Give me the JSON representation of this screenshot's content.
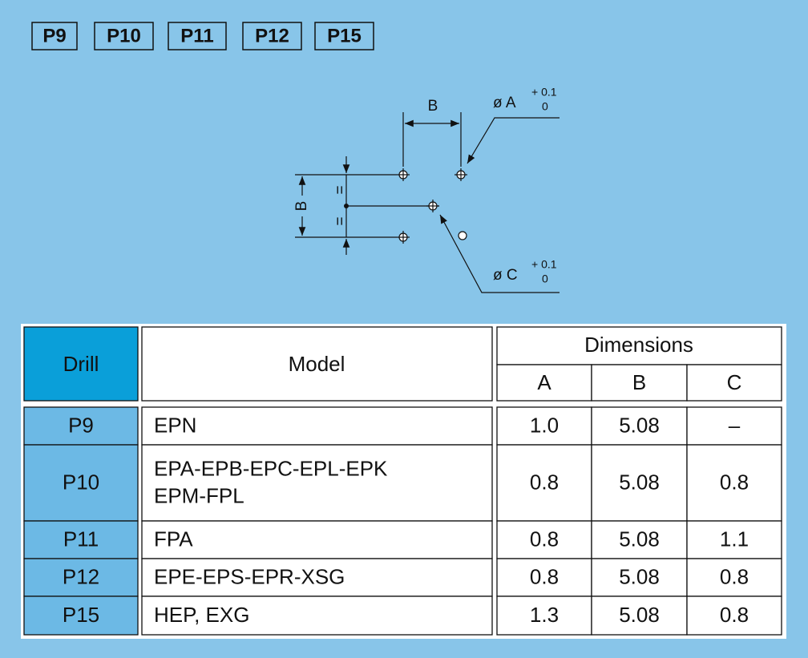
{
  "tabs": [
    "P9",
    "P10",
    "P11",
    "P12",
    "P15"
  ],
  "diagram": {
    "dim_b_top": "B",
    "dim_b_left": "B",
    "equal_top": "=",
    "equal_bottom": "=",
    "hole_a": {
      "label": "ø A",
      "tol_upper": "+ 0.1",
      "tol_lower": "0"
    },
    "hole_c": {
      "label": "ø C",
      "tol_upper": "+ 0.1",
      "tol_lower": "0"
    }
  },
  "table": {
    "headers": {
      "drill": "Drill",
      "model": "Model",
      "dimensions": "Dimensions",
      "a": "A",
      "b": "B",
      "c": "C"
    },
    "rows": [
      [
        "P9",
        [
          "EPN"
        ],
        "1.0",
        "5.08",
        "–"
      ],
      [
        "P10",
        [
          "EPA-EPB-EPC-EPL-EPK",
          "EPM-FPL"
        ],
        "0.8",
        "5.08",
        "0.8"
      ],
      [
        "P11",
        [
          "FPA"
        ],
        "0.8",
        "5.08",
        "1.1"
      ],
      [
        "P12",
        [
          "EPE-EPS-EPR-XSG"
        ],
        "0.8",
        "5.08",
        "0.8"
      ],
      [
        "P15",
        [
          "HEP, EXG"
        ],
        "1.3",
        "5.08",
        "0.8"
      ]
    ]
  }
}
